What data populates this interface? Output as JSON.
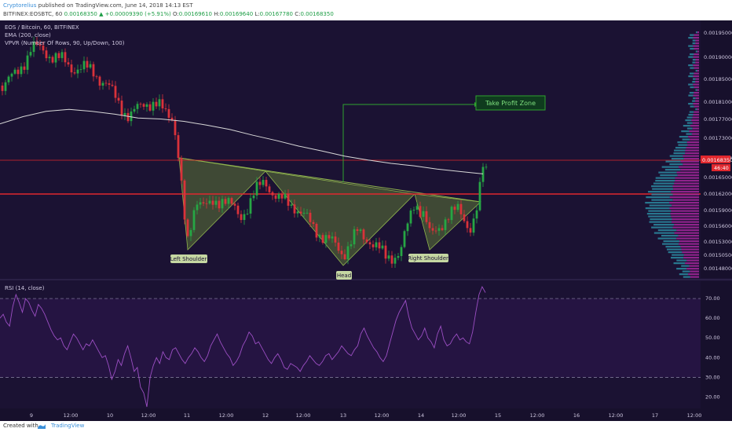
{
  "header": {
    "author": "Cryptorelius",
    "published_text": "published on TradingView.com, June 14, 2018 14:13 EST",
    "symbol": "BITFINEX:EOSBTC, 60",
    "price": "0.00168350",
    "change": "▲ +0.00009390 (+5.91%)",
    "open_label": "O:",
    "open": "0.00169610",
    "high_label": "H:",
    "high": "0.00169640",
    "low_label": "L:",
    "low": "0.00167780",
    "close_label": "C:",
    "close": "0.00168350"
  },
  "legend": {
    "title": "EOS / Bitcoin, 60, BITFINEX",
    "ema": "EMA (200, close)",
    "vpvr": "VPVR (Number Of Rows, 90, Up/Down, 100)",
    "rsi": "RSI (14, close)"
  },
  "footer": {
    "created_with": "Created with",
    "brand": "TradingView"
  },
  "colors": {
    "background": "#1b1233",
    "up": "#26a644",
    "down": "#d9323a",
    "ema": "#d8d8d8",
    "resistance": "#e0282e",
    "pattern_fill": "#6c8e38",
    "profit_zone": "#2fa12f",
    "rsi_line": "#9c4fc4",
    "vpvr_up": "#2a8aa0",
    "vpvr_down": "#a4279c"
  },
  "chart_data": [
    {
      "type": "candlestick",
      "title": "EOS / Bitcoin, 60, BITFINEX",
      "y_range": [
        0.00147,
        0.00198
      ],
      "y_ticks": [
        "0.00195000",
        "0.00190000",
        "0.00185000",
        "0.00181000",
        "0.00177000",
        "0.00173000",
        "0.00169000",
        "0.00165000",
        "0.00162000",
        "0.00159000",
        "0.00156000",
        "0.00153000",
        "0.00150500",
        "0.00148000"
      ],
      "x_ticks": [
        "9",
        "12:00",
        "10",
        "12:00",
        "11",
        "12:00",
        "12",
        "12:00",
        "13",
        "12:00",
        "14",
        "12:00",
        "15",
        "12:00",
        "16",
        "12:00",
        "17",
        "12:00"
      ],
      "price_label": "0.00168350",
      "countdown_label": "46:40",
      "horizontal_levels": [
        0.0016835,
        0.001618
      ],
      "ema_200": [
        0.00178,
        0.001795,
        0.001806,
        0.00181,
        0.001806,
        0.0018,
        0.001792,
        0.00179,
        0.001785,
        0.001777,
        0.001768,
        0.001756,
        0.001745,
        0.001733,
        0.001723,
        0.001712,
        0.001704,
        0.001697,
        0.001692,
        0.001685,
        0.00168,
        0.001675
      ],
      "annotations": {
        "left_shoulder": "Left Shoulder",
        "head": "Head",
        "right_shoulder": "Right Shoulder",
        "take_profit": "Take Profit Zone"
      },
      "volume_profile": "VPVR (Number Of Rows, 90, Up/Down, 100)"
    },
    {
      "type": "line",
      "title": "RSI (14, close)",
      "y_range": [
        15,
        78
      ],
      "y_ticks": [
        "70.00",
        "60.00",
        "50.00",
        "40.00",
        "30.00",
        "20.00"
      ],
      "levels": [
        70,
        30
      ],
      "rsi": [
        60,
        62,
        58,
        56,
        66,
        72,
        68,
        63,
        70,
        68,
        64,
        61,
        67,
        65,
        62,
        58,
        54,
        51,
        49,
        50,
        46,
        44,
        48,
        52,
        50,
        47,
        44,
        47,
        46,
        49,
        46,
        43,
        40,
        41,
        36,
        29,
        33,
        39,
        36,
        42,
        46,
        40,
        33,
        35,
        25,
        22,
        15,
        30,
        36,
        40,
        37,
        43,
        40,
        39,
        44,
        45,
        42,
        39,
        37,
        40,
        42,
        45,
        43,
        40,
        38,
        41,
        46,
        49,
        52,
        48,
        45,
        42,
        40,
        36,
        38,
        41,
        46,
        49,
        53,
        51,
        47,
        48,
        45,
        42,
        39,
        37,
        40,
        42,
        39,
        35,
        34,
        37,
        36,
        35,
        33,
        36,
        38,
        41,
        39,
        37,
        36,
        38,
        41,
        42,
        39,
        41,
        43,
        46,
        44,
        42,
        41,
        44,
        46,
        52,
        55,
        51,
        48,
        45,
        43,
        40,
        38,
        41,
        47,
        53,
        59,
        63,
        66,
        69,
        61,
        55,
        52,
        49,
        51,
        55,
        50,
        48,
        45,
        52,
        56,
        49,
        46,
        47,
        50,
        52,
        49,
        50,
        48,
        47,
        53,
        63,
        72,
        76,
        73
      ]
    }
  ]
}
